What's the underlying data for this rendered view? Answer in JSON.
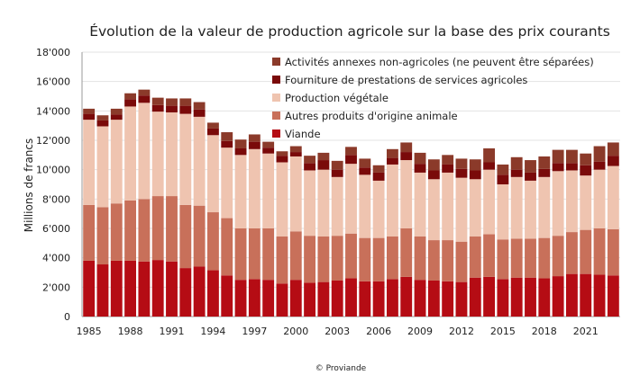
{
  "chart_data": {
    "type": "bar",
    "stacked": true,
    "title": "Évolution de la valeur de production agricole sur la base des prix courants",
    "ylabel": "Millions de francs",
    "xlabel": "",
    "ylim": [
      0,
      18000
    ],
    "yticks": [
      "0",
      "2'000",
      "4'000",
      "6'000",
      "8'000",
      "10'000",
      "12'000",
      "14'000",
      "16'000",
      "18'000"
    ],
    "xtick_labels": [
      "1985",
      "1988",
      "1991",
      "1994",
      "1997",
      "2000",
      "2003",
      "2006",
      "2009",
      "2012",
      "2015",
      "2018",
      "2021"
    ],
    "grid": "horizontal",
    "legend_position": "top-center",
    "categories": [
      1985,
      1986,
      1987,
      1988,
      1989,
      1990,
      1991,
      1992,
      1993,
      1994,
      1995,
      1996,
      1997,
      1998,
      1999,
      2000,
      2001,
      2002,
      2003,
      2004,
      2005,
      2006,
      2007,
      2008,
      2009,
      2010,
      2011,
      2012,
      2013,
      2014,
      2015,
      2016,
      2017,
      2018,
      2019,
      2020,
      2021,
      2022,
      2023
    ],
    "series": [
      {
        "name": "Viande",
        "color": "#b50c14",
        "values": [
          3800,
          3550,
          3800,
          3800,
          3750,
          3850,
          3750,
          3300,
          3400,
          3150,
          2800,
          2500,
          2550,
          2500,
          2250,
          2500,
          2300,
          2350,
          2450,
          2600,
          2400,
          2400,
          2550,
          2700,
          2500,
          2450,
          2400,
          2350,
          2650,
          2700,
          2550,
          2650,
          2650,
          2600,
          2750,
          2900,
          2900,
          2850,
          2800
        ]
      },
      {
        "name": "Autres produits d'origine animale",
        "color": "#c8705a",
        "values": [
          3800,
          3900,
          3900,
          4100,
          4250,
          4350,
          4450,
          4300,
          4150,
          3950,
          3900,
          3500,
          3450,
          3500,
          3200,
          3300,
          3200,
          3100,
          3050,
          3050,
          2950,
          2950,
          2900,
          3300,
          2950,
          2750,
          2800,
          2750,
          2800,
          2900,
          2700,
          2650,
          2650,
          2750,
          2750,
          2850,
          3000,
          3150,
          3150
        ]
      },
      {
        "name": "Production végétale",
        "color": "#efc4b0",
        "values": [
          5800,
          5500,
          5700,
          6400,
          6550,
          5750,
          5700,
          6200,
          6050,
          5250,
          4800,
          5000,
          5400,
          5100,
          5050,
          5100,
          4450,
          4550,
          4000,
          4750,
          4300,
          3900,
          4900,
          4650,
          4350,
          4150,
          4600,
          4350,
          3900,
          4400,
          3750,
          4200,
          3950,
          4150,
          4400,
          4200,
          3700,
          4000,
          4300
        ]
      },
      {
        "name": "Fourniture de prestations de services agricoles",
        "color": "#7a0a0a",
        "values": [
          400,
          400,
          350,
          500,
          500,
          450,
          450,
          550,
          500,
          450,
          450,
          450,
          500,
          400,
          450,
          300,
          500,
          650,
          500,
          600,
          500,
          550,
          450,
          550,
          600,
          600,
          550,
          600,
          600,
          500,
          650,
          500,
          550,
          550,
          550,
          500,
          700,
          550,
          700
        ]
      },
      {
        "name": "Activités annexes non-agricoles (ne peuvent être séparées)",
        "color": "#8b3a2a",
        "values": [
          350,
          350,
          400,
          400,
          400,
          500,
          500,
          500,
          500,
          400,
          600,
          600,
          500,
          400,
          300,
          400,
          500,
          500,
          600,
          550,
          600,
          500,
          600,
          650,
          750,
          750,
          650,
          700,
          750,
          950,
          700,
          850,
          850,
          850,
          900,
          900,
          800,
          1050,
          900
        ]
      }
    ]
  },
  "footer": "© Proviande"
}
